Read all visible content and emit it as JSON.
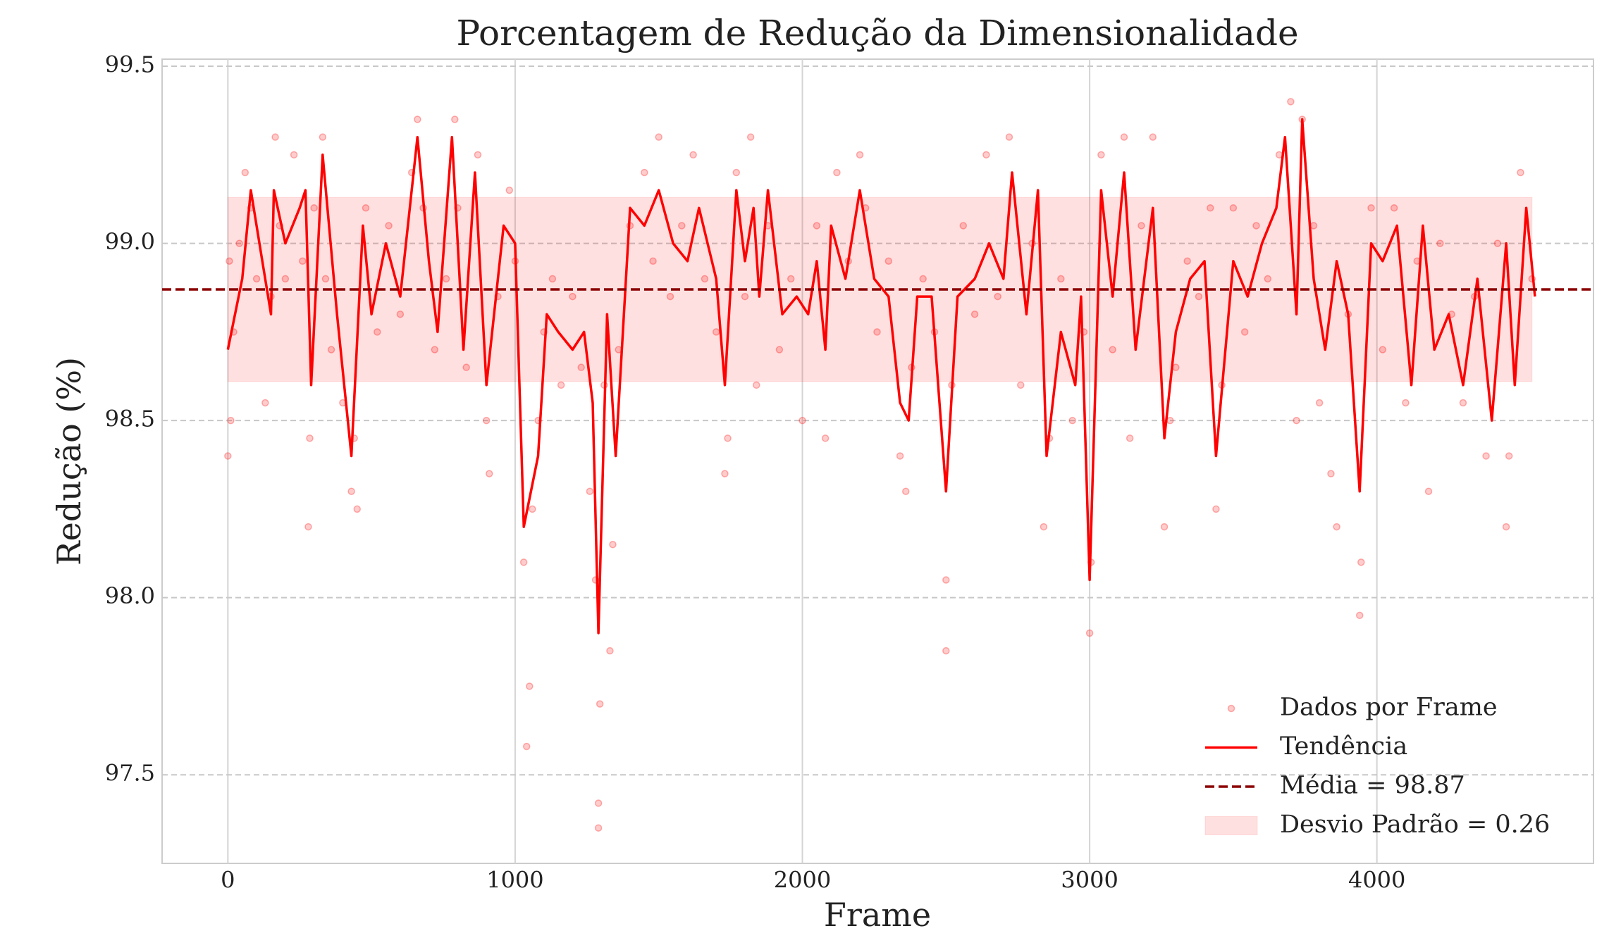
{
  "chart_data": {
    "type": "scatter-trend",
    "title": "Porcentagem de Redução da Dimensionalidade",
    "xlabel": "Frame",
    "ylabel": "Redução (%)",
    "xlim": [
      -229,
      4754
    ],
    "ylim": [
      97.25,
      99.52
    ],
    "xticks": [
      0,
      1000,
      2000,
      3000,
      4000
    ],
    "yticks": [
      97.5,
      {
        "value": 98.0,
        "label": "98.0"
      },
      98.5,
      {
        "value": 99.0,
        "label": "99.0"
      },
      99.5
    ],
    "grid": true,
    "legend": "lower right",
    "series": [
      {
        "name": "Dados por Frame",
        "type": "scatter",
        "color": "#ff0000",
        "x": [
          0,
          5,
          10,
          20,
          40,
          60,
          80,
          100,
          130,
          150,
          165,
          180,
          200,
          230,
          260,
          280,
          285,
          300,
          330,
          340,
          360,
          400,
          430,
          440,
          450,
          480,
          520,
          560,
          600,
          640,
          660,
          680,
          720,
          760,
          790,
          800,
          830,
          870,
          900,
          910,
          940,
          980,
          1000,
          1030,
          1040,
          1050,
          1060,
          1080,
          1100,
          1130,
          1160,
          1200,
          1230,
          1260,
          1280,
          1290,
          1290,
          1295,
          1310,
          1330,
          1340,
          1360,
          1400,
          1450,
          1480,
          1500,
          1540,
          1580,
          1620,
          1660,
          1700,
          1730,
          1740,
          1770,
          1800,
          1820,
          1840,
          1880,
          1920,
          1960,
          2000,
          2050,
          2080,
          2120,
          2160,
          2200,
          2220,
          2260,
          2300,
          2340,
          2360,
          2380,
          2420,
          2460,
          2500,
          2500,
          2520,
          2560,
          2600,
          2640,
          2680,
          2720,
          2760,
          2800,
          2840,
          2860,
          2900,
          2940,
          2980,
          3000,
          3005,
          3040,
          3080,
          3120,
          3140,
          3180,
          3220,
          3260,
          3280,
          3300,
          3340,
          3380,
          3420,
          3440,
          3460,
          3500,
          3540,
          3580,
          3620,
          3660,
          3700,
          3720,
          3740,
          3780,
          3800,
          3840,
          3860,
          3900,
          3940,
          3945,
          3980,
          4020,
          4060,
          4100,
          4140,
          4180,
          4220,
          4260,
          4300,
          4340,
          4380,
          4420,
          4450,
          4460,
          4500,
          4540
        ],
        "values": [
          98.4,
          98.95,
          98.5,
          98.75,
          99.0,
          99.2,
          99.1,
          98.9,
          98.55,
          98.85,
          99.3,
          99.05,
          98.9,
          99.25,
          98.95,
          98.2,
          98.45,
          99.1,
          99.3,
          98.9,
          98.7,
          98.55,
          98.3,
          98.45,
          98.25,
          99.1,
          98.75,
          99.05,
          98.8,
          99.2,
          99.35,
          99.1,
          98.7,
          98.9,
          99.35,
          99.1,
          98.65,
          99.25,
          98.5,
          98.35,
          98.85,
          99.15,
          98.95,
          98.1,
          97.58,
          97.75,
          98.25,
          98.5,
          98.75,
          98.9,
          98.6,
          98.85,
          98.65,
          98.3,
          98.05,
          97.35,
          97.42,
          97.7,
          98.6,
          97.85,
          98.15,
          98.7,
          99.05,
          99.2,
          98.95,
          99.3,
          98.85,
          99.05,
          99.25,
          98.9,
          98.75,
          98.35,
          98.45,
          99.2,
          98.85,
          99.3,
          98.6,
          99.05,
          98.7,
          98.9,
          98.5,
          99.05,
          98.45,
          99.2,
          98.95,
          99.25,
          99.1,
          98.75,
          98.95,
          98.4,
          98.3,
          98.65,
          98.9,
          98.75,
          97.85,
          98.05,
          98.6,
          99.05,
          98.8,
          99.25,
          98.85,
          99.3,
          98.6,
          99.0,
          98.2,
          98.45,
          98.9,
          98.5,
          98.75,
          97.9,
          98.1,
          99.25,
          98.7,
          99.3,
          98.45,
          99.05,
          99.3,
          98.2,
          98.5,
          98.65,
          98.95,
          98.85,
          99.1,
          98.25,
          98.6,
          99.1,
          98.75,
          99.05,
          98.9,
          99.25,
          99.4,
          98.5,
          99.35,
          99.05,
          98.55,
          98.35,
          98.2,
          98.8,
          97.95,
          98.1,
          99.1,
          98.7,
          99.1,
          98.55,
          98.95,
          98.3,
          99.0,
          98.8,
          98.55,
          98.85,
          98.4,
          99.0,
          98.2,
          98.4,
          99.2,
          98.9
        ]
      },
      {
        "name": "Tendência",
        "type": "line",
        "color": "#ff0000",
        "x": [
          0,
          50,
          80,
          120,
          150,
          160,
          200,
          250,
          270,
          290,
          330,
          380,
          430,
          470,
          500,
          550,
          600,
          660,
          700,
          730,
          780,
          820,
          860,
          900,
          960,
          1000,
          1030,
          1080,
          1110,
          1150,
          1200,
          1240,
          1270,
          1290,
          1320,
          1350,
          1400,
          1450,
          1500,
          1550,
          1600,
          1640,
          1700,
          1730,
          1770,
          1800,
          1830,
          1850,
          1880,
          1930,
          1980,
          2020,
          2050,
          2080,
          2100,
          2150,
          2200,
          2250,
          2300,
          2340,
          2370,
          2400,
          2450,
          2500,
          2540,
          2600,
          2650,
          2700,
          2730,
          2780,
          2820,
          2850,
          2900,
          2950,
          2970,
          3000,
          3040,
          3080,
          3120,
          3160,
          3220,
          3260,
          3300,
          3350,
          3400,
          3440,
          3500,
          3550,
          3600,
          3650,
          3680,
          3720,
          3740,
          3780,
          3820,
          3860,
          3900,
          3940,
          3980,
          4020,
          4070,
          4120,
          4160,
          4200,
          4250,
          4300,
          4350,
          4400,
          4450,
          4480,
          4520,
          4550
        ],
        "values": [
          98.7,
          98.9,
          99.15,
          98.95,
          98.8,
          99.15,
          99.0,
          99.1,
          99.15,
          98.6,
          99.25,
          98.8,
          98.4,
          99.05,
          98.8,
          99.0,
          98.85,
          99.3,
          98.95,
          98.75,
          99.3,
          98.7,
          99.2,
          98.6,
          99.05,
          99.0,
          98.2,
          98.4,
          98.8,
          98.75,
          98.7,
          98.75,
          98.55,
          97.9,
          98.8,
          98.4,
          99.1,
          99.05,
          99.15,
          99.0,
          98.95,
          99.1,
          98.9,
          98.6,
          99.15,
          98.95,
          99.1,
          98.85,
          99.15,
          98.8,
          98.85,
          98.8,
          98.95,
          98.7,
          99.05,
          98.9,
          99.15,
          98.9,
          98.85,
          98.55,
          98.5,
          98.85,
          98.85,
          98.3,
          98.85,
          98.9,
          99.0,
          98.9,
          99.2,
          98.8,
          99.15,
          98.4,
          98.75,
          98.6,
          98.85,
          98.05,
          99.15,
          98.85,
          99.2,
          98.7,
          99.1,
          98.45,
          98.75,
          98.9,
          98.95,
          98.4,
          98.95,
          98.85,
          99.0,
          99.1,
          99.3,
          98.8,
          99.35,
          98.9,
          98.7,
          98.95,
          98.8,
          98.3,
          99.0,
          98.95,
          99.05,
          98.6,
          99.05,
          98.7,
          98.8,
          98.6,
          98.9,
          98.5,
          99.0,
          98.6,
          99.1,
          98.85
        ]
      },
      {
        "name": "Média = 98.87",
        "type": "hline",
        "color": "#8b0000",
        "value": 98.87
      },
      {
        "name": "Desvio Padrão = 0.26",
        "type": "band",
        "color": "#ff0000",
        "value": 0.26
      }
    ]
  }
}
